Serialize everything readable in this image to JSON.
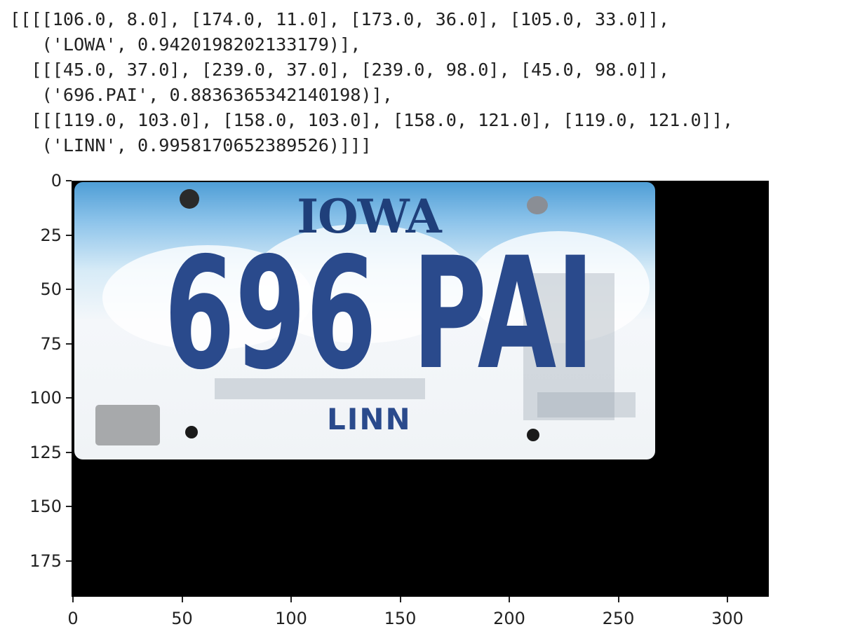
{
  "ocr_output": {
    "lines": [
      "[[[[106.0, 8.0], [174.0, 11.0], [173.0, 36.0], [105.0, 33.0]],",
      "   ('LOWA', 0.9420198202133179)],",
      "  [[[45.0, 37.0], [239.0, 37.0], [239.0, 98.0], [45.0, 98.0]],",
      "   ('696.PAI', 0.8836365342140198)],",
      "  [[[119.0, 103.0], [158.0, 103.0], [158.0, 121.0], [119.0, 121.0]],",
      "   ('LINN', 0.9958170652389526)]]]"
    ]
  },
  "figure": {
    "image_subject": "license-plate",
    "plate": {
      "state_name": "IOWA",
      "number": "696 PAI",
      "county": "LINN",
      "colors": {
        "text": "#2a4a8c",
        "sky_top": "#4f9ed6",
        "background": "#f0f3f6"
      }
    },
    "x_ticks": [
      "0",
      "50",
      "100",
      "150",
      "200",
      "250",
      "300"
    ],
    "y_ticks": [
      "0",
      "25",
      "50",
      "75",
      "100",
      "125",
      "150",
      "175"
    ]
  }
}
